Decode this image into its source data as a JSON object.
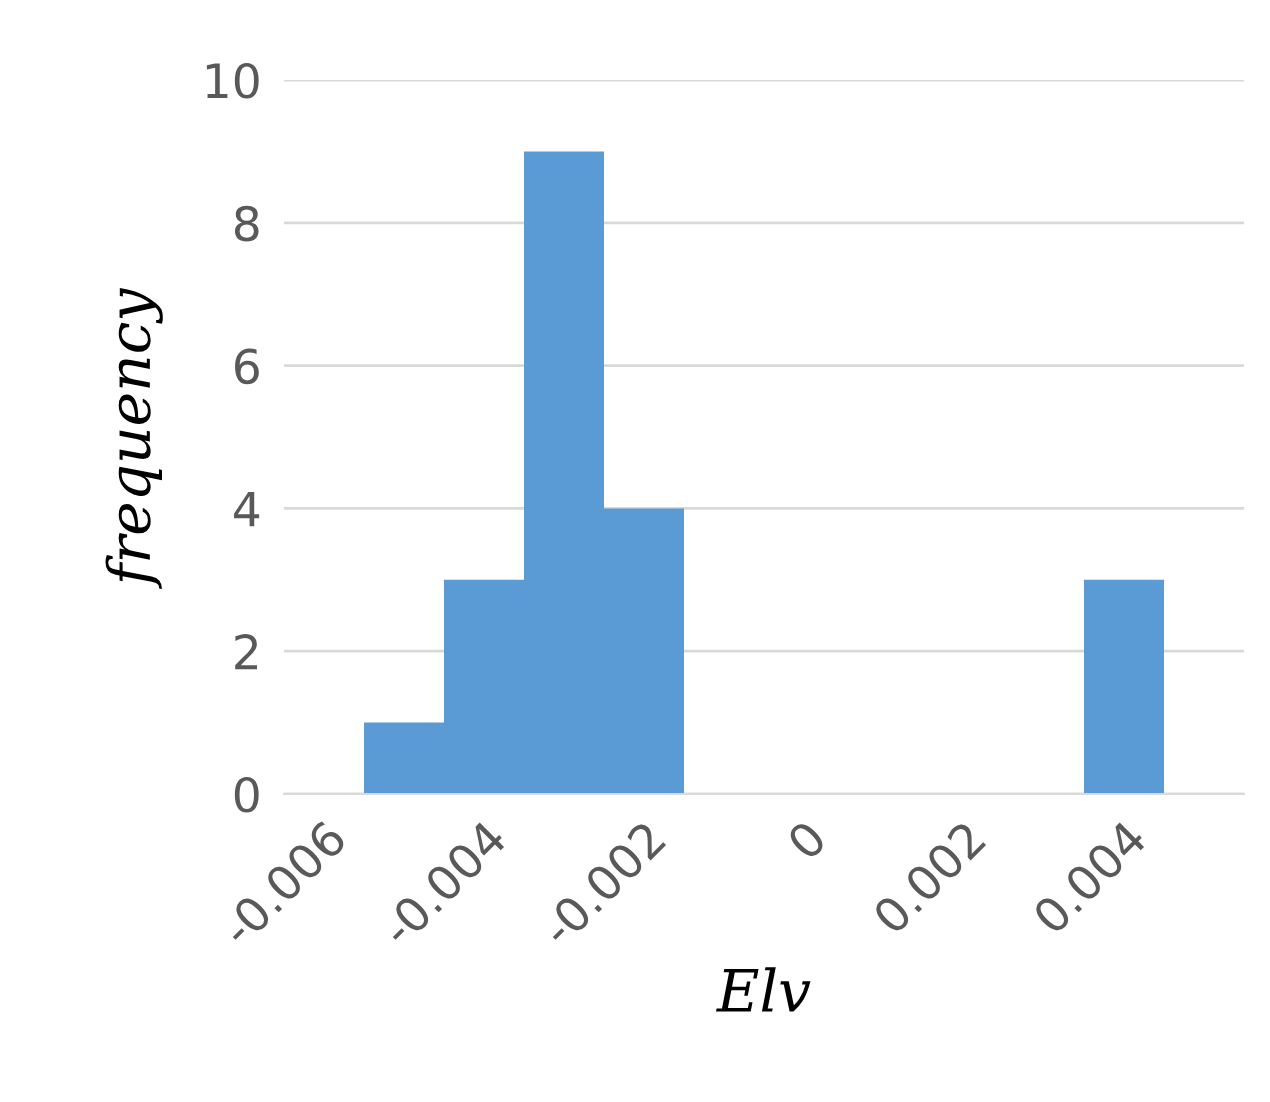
{
  "chart_data": {
    "type": "histogram",
    "xlabel": "Elv",
    "ylabel": "frequency",
    "bins": [
      -0.0065,
      -0.0055,
      -0.0045,
      -0.0035,
      -0.0025,
      -0.0015,
      -0.0005,
      0.0005,
      0.0015,
      0.0025,
      0.0035,
      0.0045,
      0.0055
    ],
    "values": [
      0,
      1,
      3,
      9,
      4,
      0,
      0,
      0,
      0,
      0,
      3,
      0
    ],
    "color": "#5b9bd5",
    "xlim": [
      -0.0065,
      0.0055
    ],
    "xticks": [
      -0.006,
      -0.004,
      -0.002,
      0,
      0.002,
      0.004
    ],
    "ylim": [
      0,
      10
    ],
    "yticks": [
      0,
      2,
      4,
      6,
      8,
      10
    ],
    "grid": "y"
  }
}
